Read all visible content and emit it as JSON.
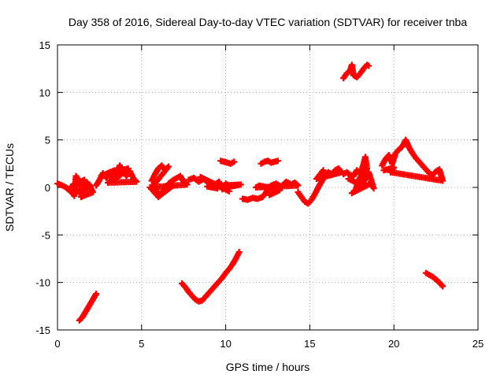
{
  "chart_data": {
    "type": "scatter",
    "title": "Day 358 of 2016, Sidereal Day-to-day VTEC variation (SDTVAR) for receiver tnba",
    "xlabel": "GPS time / hours",
    "ylabel": "SDTVAR / TECUs",
    "xlim": [
      0,
      25
    ],
    "ylim": [
      -15,
      15
    ],
    "xticks": [
      0,
      5,
      10,
      15,
      20,
      25
    ],
    "yticks": [
      -15,
      -10,
      -5,
      0,
      5,
      10,
      15
    ],
    "xtick_labels": [
      "0",
      "5",
      "10",
      "15",
      "20",
      "25"
    ],
    "ytick_labels": [
      "-15",
      "-10",
      "-5",
      "0",
      "5",
      "10",
      "15"
    ],
    "grid": true,
    "marker": "plus",
    "series_color": "#ff0000",
    "series": [
      {
        "name": "s1",
        "points": [
          [
            0,
            0.4
          ],
          [
            0.3,
            0.2
          ],
          [
            0.5,
            0
          ],
          [
            0.7,
            -0.3
          ],
          [
            0.9,
            -0.6
          ],
          [
            1.0,
            -0.9
          ],
          [
            1.1,
            1.2
          ],
          [
            1.3,
            0.6
          ],
          [
            1.5,
            -0.2
          ],
          [
            1.7,
            0.5
          ],
          [
            1.9,
            0.3
          ],
          [
            2.1,
            -0.5
          ],
          [
            1.4,
            -1.0
          ],
          [
            1.6,
            0.8
          ],
          [
            0.8,
            0.1
          ],
          [
            1.2,
            -0.4
          ],
          [
            1.8,
            -0.1
          ]
        ]
      },
      {
        "name": "s2",
        "points": [
          [
            2.3,
            0.2
          ],
          [
            2.5,
            0.8
          ],
          [
            2.7,
            1.5
          ],
          [
            2.9,
            1.0
          ],
          [
            3.1,
            1.6
          ],
          [
            3.3,
            0.9
          ],
          [
            3.5,
            1.4
          ],
          [
            3.7,
            2.3
          ],
          [
            3.9,
            1.8
          ],
          [
            4.1,
            1.2
          ],
          [
            4.3,
            1.7
          ],
          [
            4.5,
            1.0
          ],
          [
            4.7,
            0.6
          ],
          [
            3.0,
            0.5
          ],
          [
            3.6,
            1.1
          ],
          [
            4.2,
            2.0
          ],
          [
            2.6,
            1.2
          ],
          [
            3.4,
            1.8
          ]
        ]
      },
      {
        "name": "s3",
        "points": [
          [
            5.6,
            0.7
          ],
          [
            5.8,
            1.4
          ],
          [
            6.0,
            2.0
          ],
          [
            6.2,
            2.3
          ],
          [
            6.4,
            1.8
          ],
          [
            6.6,
            2.2
          ],
          [
            5.7,
            0.2
          ],
          [
            5.9,
            -0.4
          ],
          [
            6.1,
            -0.8
          ],
          [
            6.3,
            -0.3
          ],
          [
            6.6,
            0.4
          ],
          [
            6.9,
            0.8
          ],
          [
            7.1,
            1.0
          ],
          [
            7.3,
            1.2
          ],
          [
            7.5,
            0.6
          ],
          [
            7.7,
            0.3
          ],
          [
            5.5,
            0
          ],
          [
            6.0,
            -1.0
          ],
          [
            6.8,
            0.1
          ]
        ]
      },
      {
        "name": "s4",
        "points": [
          [
            7.8,
            0.8
          ],
          [
            8.1,
            1.0
          ],
          [
            8.4,
            0.6
          ],
          [
            8.7,
            0.9
          ],
          [
            9.0,
            0.5
          ],
          [
            9.3,
            0.2
          ],
          [
            9.6,
            0.6
          ],
          [
            9.8,
            -0.2
          ],
          [
            10.0,
            0.4
          ],
          [
            10.3,
            0.1
          ],
          [
            10.6,
            0.2
          ],
          [
            10.9,
            0.3
          ],
          [
            8.9,
            0.1
          ],
          [
            9.5,
            -0.1
          ],
          [
            8.5,
            1.1
          ],
          [
            10.2,
            -0.4
          ]
        ]
      },
      {
        "name": "s5",
        "points": [
          [
            9.7,
            2.8
          ],
          [
            9.9,
            2.7
          ],
          [
            10.1,
            2.6
          ],
          [
            10.3,
            2.5
          ],
          [
            10.5,
            2.7
          ]
        ]
      },
      {
        "name": "s6",
        "points": [
          [
            12.1,
            2.5
          ],
          [
            12.3,
            2.7
          ],
          [
            12.5,
            2.8
          ],
          [
            12.7,
            2.6
          ],
          [
            12.9,
            2.7
          ],
          [
            13.1,
            2.8
          ]
        ]
      },
      {
        "name": "s7",
        "points": [
          [
            11.0,
            -1.2
          ],
          [
            11.3,
            -1.3
          ],
          [
            11.6,
            -1.1
          ],
          [
            11.9,
            -1.2
          ],
          [
            12.2,
            -1.0
          ],
          [
            12.4,
            -0.5
          ],
          [
            12.7,
            0.2
          ],
          [
            13.0,
            0.4
          ],
          [
            13.3,
            0.1
          ],
          [
            13.6,
            0.6
          ],
          [
            13.9,
            0.3
          ],
          [
            14.1,
            0.5
          ],
          [
            14.3,
            0.2
          ],
          [
            11.8,
            0
          ],
          [
            12.0,
            0.2
          ],
          [
            13.2,
            -0.3
          ],
          [
            12.6,
            -0.8
          ]
        ]
      },
      {
        "name": "s8",
        "points": [
          [
            14.3,
            -0.5
          ],
          [
            14.5,
            -1.0
          ],
          [
            14.7,
            -1.5
          ],
          [
            14.9,
            -1.7
          ],
          [
            15.1,
            -1.3
          ],
          [
            15.3,
            -0.7
          ],
          [
            15.5,
            0
          ],
          [
            15.7,
            0.6
          ],
          [
            15.9,
            1.2
          ],
          [
            16.1,
            1.6
          ],
          [
            16.3,
            1.4
          ],
          [
            16.5,
            1.8
          ],
          [
            16.7,
            2.0
          ],
          [
            16.9,
            1.6
          ],
          [
            15.4,
            0.9
          ],
          [
            15.8,
            1.8
          ]
        ]
      },
      {
        "name": "s9",
        "points": [
          [
            17.0,
            1.4
          ],
          [
            17.2,
            1.6
          ],
          [
            17.4,
            1.3
          ],
          [
            17.6,
            1.2
          ],
          [
            17.8,
            1.8
          ],
          [
            18.0,
            1.4
          ],
          [
            18.2,
            2.5
          ],
          [
            18.3,
            3.2
          ],
          [
            18.4,
            2.0
          ],
          [
            17.9,
            0.8
          ],
          [
            17.7,
            -0.4
          ],
          [
            17.5,
            -0.6
          ],
          [
            18.6,
            0.4
          ],
          [
            18.8,
            -0.1
          ],
          [
            18.5,
            1.6
          ],
          [
            18.1,
            0.2
          ],
          [
            17.3,
            0.9
          ]
        ]
      },
      {
        "name": "s10",
        "points": [
          [
            19.3,
            2.3
          ],
          [
            19.5,
            3.0
          ],
          [
            19.7,
            3.4
          ],
          [
            19.9,
            2.5
          ],
          [
            20.1,
            3.6
          ],
          [
            20.3,
            4.0
          ],
          [
            20.5,
            4.3
          ],
          [
            20.7,
            5.0
          ],
          [
            20.9,
            4.2
          ],
          [
            21.1,
            3.6
          ],
          [
            21.3,
            3.1
          ],
          [
            21.5,
            2.7
          ],
          [
            21.7,
            2.3
          ],
          [
            21.9,
            1.9
          ],
          [
            22.1,
            1.5
          ],
          [
            22.3,
            1.3
          ],
          [
            22.5,
            1.7
          ],
          [
            22.7,
            1.9
          ],
          [
            22.9,
            0.7
          ],
          [
            19.8,
            1.6
          ],
          [
            20.0,
            2.1
          ],
          [
            19.4,
            1.8
          ]
        ]
      },
      {
        "name": "s11",
        "points": [
          [
            17.0,
            11.5
          ],
          [
            17.2,
            12.0
          ],
          [
            17.4,
            12.3
          ],
          [
            17.5,
            12.9
          ],
          [
            17.6,
            11.8
          ],
          [
            17.8,
            11.6
          ],
          [
            18.0,
            12.0
          ],
          [
            18.2,
            12.5
          ],
          [
            18.4,
            12.9
          ],
          [
            18.5,
            12.8
          ]
        ]
      },
      {
        "name": "s12",
        "points": [
          [
            1.3,
            -14.0
          ],
          [
            1.5,
            -13.6
          ],
          [
            1.7,
            -13.0
          ],
          [
            1.9,
            -12.4
          ],
          [
            2.1,
            -11.8
          ],
          [
            2.3,
            -11.2
          ]
        ]
      },
      {
        "name": "s13",
        "points": [
          [
            7.4,
            -10.1
          ],
          [
            7.6,
            -10.5
          ],
          [
            7.8,
            -11.0
          ],
          [
            8.0,
            -11.4
          ],
          [
            8.2,
            -11.8
          ],
          [
            8.4,
            -12.0
          ],
          [
            8.6,
            -11.9
          ],
          [
            8.8,
            -11.5
          ],
          [
            9.0,
            -11.1
          ],
          [
            9.2,
            -10.7
          ],
          [
            9.4,
            -10.3
          ],
          [
            9.6,
            -9.9
          ],
          [
            9.8,
            -9.5
          ],
          [
            10.0,
            -9.0
          ],
          [
            10.2,
            -8.6
          ],
          [
            10.4,
            -8.1
          ],
          [
            10.6,
            -7.5
          ],
          [
            10.8,
            -6.8
          ]
        ]
      },
      {
        "name": "s14",
        "points": [
          [
            21.9,
            -9.0
          ],
          [
            22.1,
            -9.2
          ],
          [
            22.3,
            -9.4
          ],
          [
            22.5,
            -9.7
          ],
          [
            22.7,
            -10.0
          ],
          [
            22.9,
            -10.4
          ]
        ]
      }
    ]
  }
}
